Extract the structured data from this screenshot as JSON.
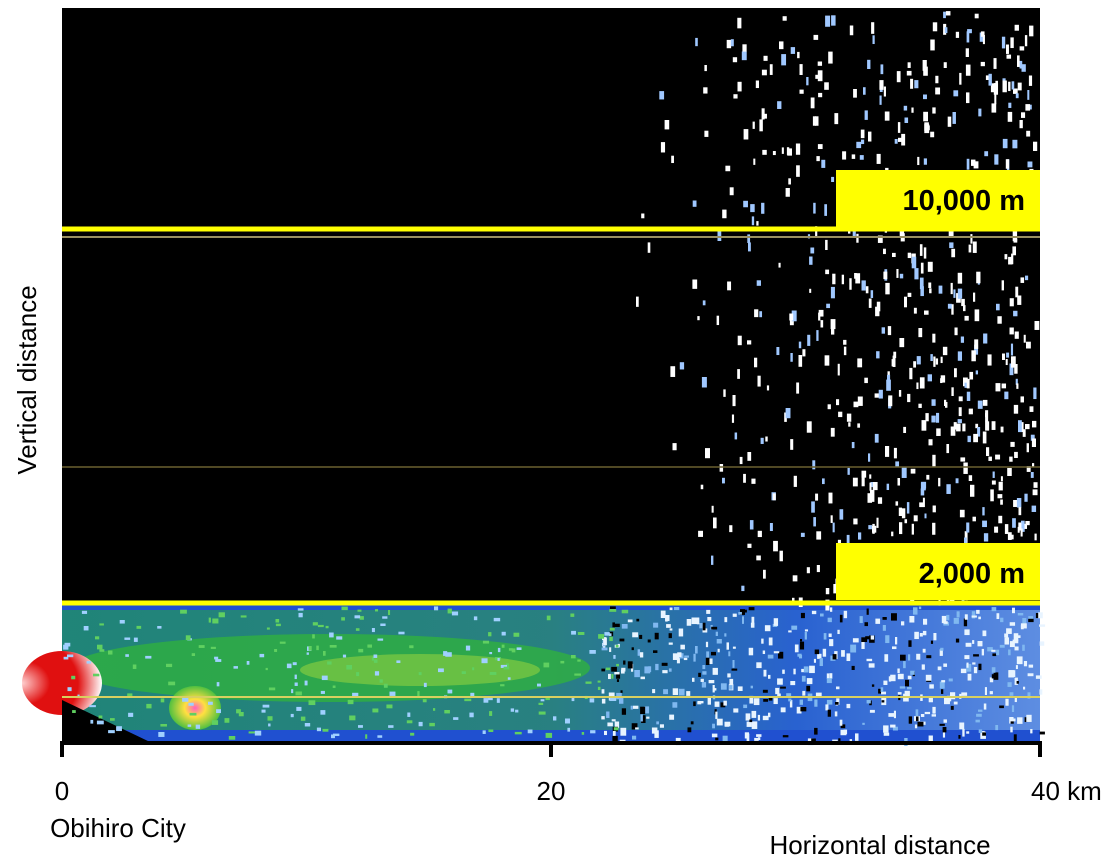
{
  "figure": {
    "y_label": "Vertical distance",
    "x_label": "Horizontal distance",
    "origin_label": "Obihiro City",
    "height_markers": [
      "10,000 m",
      "2,000 m"
    ],
    "xlim": [
      0,
      40
    ],
    "xticks": [
      0,
      20,
      {
        "value": 40,
        "label": "40 km"
      }
    ]
  }
}
